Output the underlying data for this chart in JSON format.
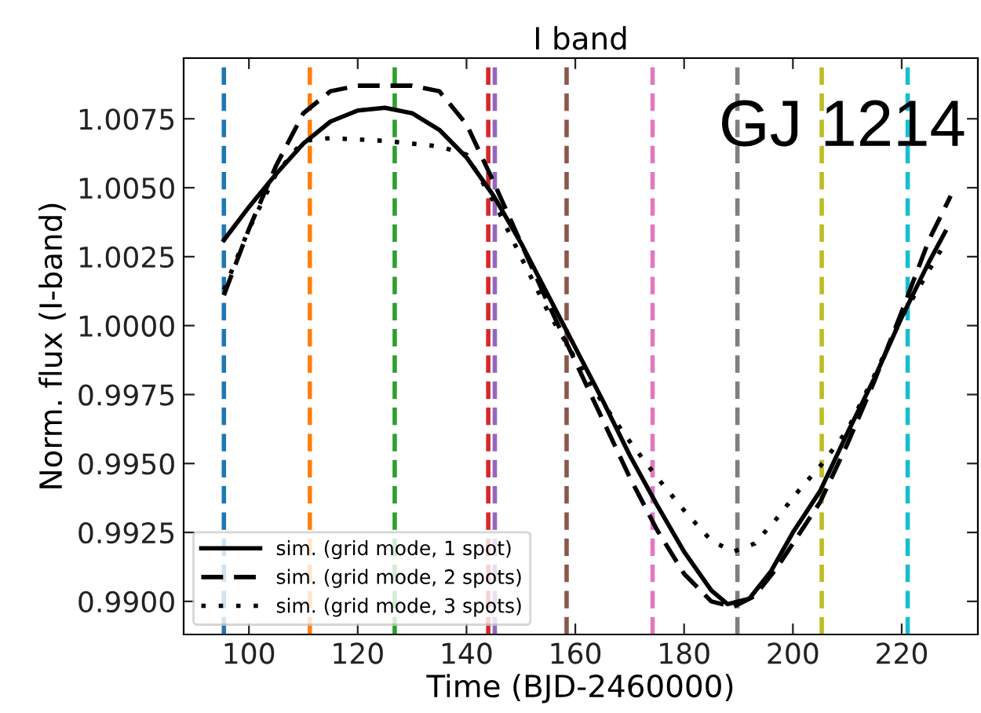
{
  "chart_data": {
    "type": "line",
    "title": "I band",
    "xlabel": "Time (BJD-2460000)",
    "ylabel": "Norm. flux (I-band)",
    "annotations": [
      "GJ 1214"
    ],
    "xlim": [
      88,
      234
    ],
    "xticks": [
      100,
      120,
      140,
      160,
      180,
      200,
      220
    ],
    "ylim": [
      0.9888,
      1.0097
    ],
    "yticks": [
      {
        "value": 0.99,
        "label": "0.9900"
      },
      {
        "value": 0.9925,
        "label": "0.9925"
      },
      {
        "value": 0.995,
        "label": "0.9950"
      },
      {
        "value": 0.9975,
        "label": "0.9975"
      },
      {
        "value": 1.0,
        "label": "1.0000"
      },
      {
        "value": 1.0025,
        "label": "1.0025"
      },
      {
        "value": 1.005,
        "label": "1.0050"
      },
      {
        "value": 1.0075,
        "label": "1.0075"
      }
    ],
    "grid": false,
    "legend": "bottom left",
    "marker": "none",
    "series": [
      {
        "name": "sim. (grid mode, 1 spot)",
        "color": "#000000",
        "line_style": "solid",
        "x": [
          95.4,
          100,
          105,
          110,
          115,
          120,
          125,
          130,
          135,
          140,
          145,
          150,
          155,
          160,
          165,
          170,
          175,
          180,
          185,
          188,
          192,
          196,
          200,
          205,
          210,
          215,
          220,
          225,
          228
        ],
        "values": [
          1.0031,
          1.0043,
          1.0055,
          1.0066,
          1.0074,
          1.0078,
          1.0079,
          1.0077,
          1.0071,
          1.0061,
          1.0047,
          1.003,
          1.0011,
          0.9992,
          0.9973,
          0.9953,
          0.9935,
          0.9918,
          0.9904,
          0.9899,
          0.9901,
          0.9911,
          0.9925,
          0.994,
          0.9961,
          0.9981,
          1.0003,
          1.0023,
          1.0034
        ]
      },
      {
        "name": "sim. (grid mode, 2 spots)",
        "color": "#000000",
        "line_style": "dashed",
        "x": [
          95.4,
          100,
          105,
          110,
          115,
          120,
          130,
          135,
          140,
          145,
          150,
          155,
          160,
          165,
          170,
          175,
          180,
          185,
          189,
          193,
          197,
          201,
          205,
          210,
          215,
          220,
          225,
          229
        ],
        "values": [
          1.0011,
          1.0035,
          1.0058,
          1.0077,
          1.0085,
          1.0087,
          1.0087,
          1.0085,
          1.0073,
          1.0052,
          1.003,
          1.0008,
          0.9987,
          0.9966,
          0.9945,
          0.9926,
          0.991,
          0.99,
          0.9898,
          0.9902,
          0.9912,
          0.9924,
          0.9936,
          0.9957,
          0.998,
          1.0005,
          1.0031,
          1.0047
        ]
      },
      {
        "name": "sim. (grid mode, 3 spots)",
        "color": "#000000",
        "line_style": "dotted",
        "x": [
          95.4,
          100,
          105,
          110,
          115,
          125,
          135,
          140,
          145,
          150,
          155,
          160,
          165,
          170,
          175,
          180,
          185,
          189,
          193,
          197,
          201,
          205,
          210,
          215,
          220,
          225,
          228
        ],
        "values": [
          1.0013,
          1.0035,
          1.0055,
          1.0067,
          1.0068,
          1.0067,
          1.0065,
          1.0062,
          1.0045,
          1.0025,
          1.0005,
          0.9988,
          0.9972,
          0.9958,
          0.9945,
          0.9933,
          0.9922,
          0.9918,
          0.9921,
          0.993,
          0.994,
          0.9949,
          0.9962,
          0.9982,
          1.0003,
          1.002,
          1.003
        ]
      }
    ],
    "ref_lines": [
      {
        "axis": "x",
        "value": 95.4,
        "color": "#1f77b4",
        "line_style": "dashed"
      },
      {
        "axis": "x",
        "value": 111.2,
        "color": "#ff7f0e",
        "line_style": "dashed"
      },
      {
        "axis": "x",
        "value": 126.8,
        "color": "#2ca02c",
        "line_style": "dashed"
      },
      {
        "axis": "x",
        "value": 144.0,
        "color": "#d62728",
        "line_style": "dashed"
      },
      {
        "axis": "x",
        "value": 145.2,
        "color": "#9467bd",
        "line_style": "dashed"
      },
      {
        "axis": "x",
        "value": 158.4,
        "color": "#8c564b",
        "line_style": "dashed"
      },
      {
        "axis": "x",
        "value": 174.2,
        "color": "#e377c2",
        "line_style": "dashed"
      },
      {
        "axis": "x",
        "value": 189.8,
        "color": "#7f7f7f",
        "line_style": "dashed"
      },
      {
        "axis": "x",
        "value": 205.3,
        "color": "#bcbd22",
        "line_style": "dashed"
      },
      {
        "axis": "x",
        "value": 221.1,
        "color": "#17becf",
        "line_style": "dashed"
      }
    ]
  }
}
